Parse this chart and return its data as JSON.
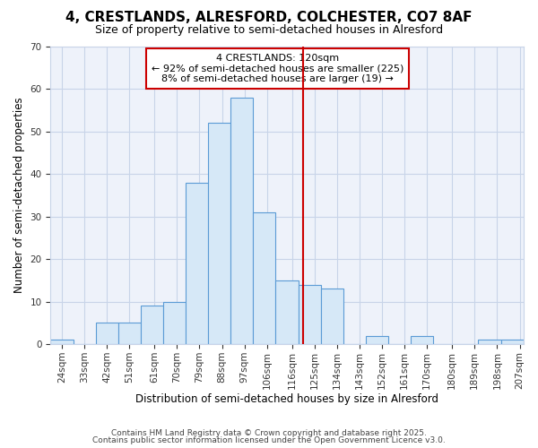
{
  "title": "4, CRESTLANDS, ALRESFORD, COLCHESTER, CO7 8AF",
  "subtitle": "Size of property relative to semi-detached houses in Alresford",
  "xlabel": "Distribution of semi-detached houses by size in Alresford",
  "ylabel": "Number of semi-detached properties",
  "annotation_title": "4 CRESTLANDS: 120sqm",
  "annotation_line1": "← 92% of semi-detached houses are smaller (225)",
  "annotation_line2": "8% of semi-detached houses are larger (19) →",
  "property_size": 120.5,
  "bin_edges": [
    19.5,
    28.5,
    37.5,
    46.5,
    55.5,
    64.5,
    73.5,
    82.5,
    91.5,
    100.5,
    109.5,
    118.5,
    127.5,
    136.5,
    145.5,
    154.5,
    163.5,
    172.5,
    181.5,
    190.5,
    199.5,
    208.5
  ],
  "bar_heights": [
    1,
    0,
    5,
    5,
    9,
    10,
    38,
    52,
    58,
    31,
    15,
    14,
    13,
    0,
    2,
    0,
    2,
    0,
    0,
    1,
    1
  ],
  "tick_labels": [
    "24sqm",
    "33sqm",
    "42sqm",
    "51sqm",
    "61sqm",
    "70sqm",
    "79sqm",
    "88sqm",
    "97sqm",
    "106sqm",
    "116sqm",
    "125sqm",
    "134sqm",
    "143sqm",
    "152sqm",
    "161sqm",
    "170sqm",
    "180sqm",
    "189sqm",
    "198sqm",
    "207sqm"
  ],
  "tick_positions": [
    24,
    33,
    42,
    51,
    61,
    70,
    79,
    88,
    97,
    106,
    116,
    125,
    134,
    143,
    152,
    161,
    170,
    180,
    189,
    198,
    207
  ],
  "ylim": [
    0,
    70
  ],
  "yticks": [
    0,
    10,
    20,
    30,
    40,
    50,
    60,
    70
  ],
  "bar_facecolor": "#d6e8f7",
  "bar_edgecolor": "#5b9bd5",
  "vline_color": "#cc0000",
  "grid_color": "#c8d4e8",
  "bg_color": "#eef2fa",
  "annotation_box_color": "#cc0000",
  "footer_line1": "Contains HM Land Registry data © Crown copyright and database right 2025.",
  "footer_line2": "Contains public sector information licensed under the Open Government Licence v3.0."
}
